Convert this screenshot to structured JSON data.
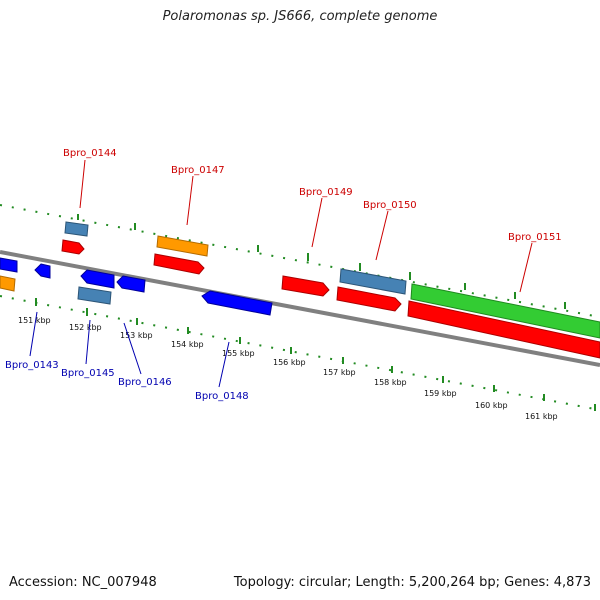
{
  "title": "Polaromonas sp. JS666, complete genome",
  "footer": {
    "accession": "Accession: NC_007948",
    "stats": "Topology: circular; Length: 5,200,264 bp; Genes: 4,873"
  },
  "colors": {
    "backbone": "#808080",
    "tick": "#228B22",
    "label_top": "#cc0000",
    "label_bottom": "#0000b0",
    "gene_red": "#ff0000",
    "gene_orange": "#ff9900",
    "gene_steel": "#4682b4",
    "gene_blue": "#0000ff",
    "gene_green": "#33cc33"
  },
  "scale_labels": [
    "151 kbp",
    "152 kbp",
    "153 kbp",
    "154 kbp",
    "155 kbp",
    "156 kbp",
    "157 kbp",
    "158 kbp",
    "159 kbp",
    "160 kbp",
    "161 kbp"
  ],
  "top_labels": [
    "Bpro_0144",
    "Bpro_0147",
    "Bpro_0149",
    "Bpro_0150",
    "Bpro_0151"
  ],
  "bottom_labels": [
    "Bpro_0143",
    "Bpro_0145",
    "Bpro_0146",
    "Bpro_0148"
  ]
}
